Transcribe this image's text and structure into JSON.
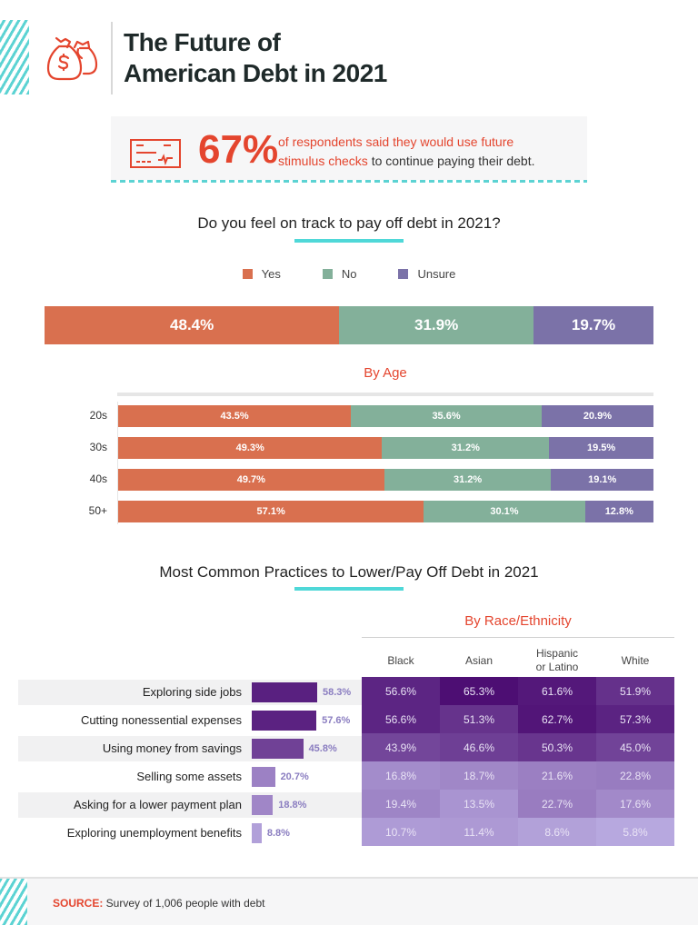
{
  "header": {
    "title_line1": "The Future of",
    "title_line2": "American Debt in 2021",
    "icon": "money-bags-icon"
  },
  "callout": {
    "icon": "check-icon",
    "percent": "67%",
    "text_highlight_line1": "of respondents said they would use future",
    "text_highlight_line2": "stimulus checks",
    "text_rest": " to continue paying their debt."
  },
  "colors": {
    "yes": "#d9704f",
    "no": "#83b09a",
    "unsure": "#7b72a8",
    "accent": "#e4452e",
    "teal": "#4fd8d8"
  },
  "chart_data": [
    {
      "type": "bar",
      "stacked": true,
      "orientation": "horizontal",
      "title": "Do you feel on track to pay off debt in 2021?",
      "legend": [
        "Yes",
        "No",
        "Unsure"
      ],
      "legend_position": "top-center",
      "categories": [
        "Overall"
      ],
      "series": [
        {
          "name": "Yes",
          "values": [
            48.4
          ],
          "labels": [
            "48.4%"
          ]
        },
        {
          "name": "No",
          "values": [
            31.9
          ],
          "labels": [
            "31.9%"
          ]
        },
        {
          "name": "Unsure",
          "values": [
            19.7
          ],
          "labels": [
            "19.7%"
          ]
        }
      ]
    },
    {
      "type": "bar",
      "stacked": true,
      "orientation": "horizontal",
      "title": "By Age",
      "categories": [
        "20s",
        "30s",
        "40s",
        "50+"
      ],
      "series": [
        {
          "name": "Yes",
          "values": [
            43.5,
            49.3,
            49.7,
            57.1
          ],
          "labels": [
            "43.5%",
            "49.3%",
            "49.7%",
            "57.1%"
          ]
        },
        {
          "name": "No",
          "values": [
            35.6,
            31.2,
            31.2,
            30.1
          ],
          "labels": [
            "35.6%",
            "31.2%",
            "31.2%",
            "30.1%"
          ]
        },
        {
          "name": "Unsure",
          "values": [
            20.9,
            19.5,
            19.1,
            12.8
          ],
          "labels": [
            "20.9%",
            "19.5%",
            "19.1%",
            "12.8%"
          ]
        }
      ]
    },
    {
      "type": "bar",
      "orientation": "horizontal",
      "title": "Most Common Practices to Lower/Pay Off Debt in 2021",
      "categories": [
        "Exploring side jobs",
        "Cutting nonessential expenses",
        "Using money from savings",
        "Selling some assets",
        "Asking for a lower payment plan",
        "Exploring unemployment benefits"
      ],
      "values": [
        58.3,
        57.6,
        45.8,
        20.7,
        18.8,
        8.8
      ],
      "labels": [
        "58.3%",
        "57.6%",
        "45.8%",
        "20.7%",
        "18.8%",
        "8.8%"
      ]
    },
    {
      "type": "heatmap",
      "title": "By Race/Ethnicity",
      "columns": [
        "Black",
        "Asian",
        "Hispanic or Latino",
        "White"
      ],
      "rows": [
        "Exploring side jobs",
        "Cutting nonessential expenses",
        "Using money from savings",
        "Selling some assets",
        "Asking for a lower payment plan",
        "Exploring unemployment benefits"
      ],
      "values": [
        [
          56.6,
          65.3,
          61.6,
          51.9
        ],
        [
          56.6,
          51.3,
          62.7,
          57.3
        ],
        [
          43.9,
          46.6,
          50.3,
          45.0
        ],
        [
          16.8,
          18.7,
          21.6,
          22.8
        ],
        [
          19.4,
          13.5,
          22.7,
          17.6
        ],
        [
          10.7,
          11.4,
          8.6,
          5.8
        ]
      ],
      "labels": [
        [
          "56.6%",
          "65.3%",
          "61.6%",
          "51.9%"
        ],
        [
          "56.6%",
          "51.3%",
          "62.7%",
          "57.3%"
        ],
        [
          "43.9%",
          "46.6%",
          "50.3%",
          "45.0%"
        ],
        [
          "16.8%",
          "18.7%",
          "21.6%",
          "22.8%"
        ],
        [
          "19.4%",
          "13.5%",
          "22.7%",
          "17.6%"
        ],
        [
          "10.7%",
          "11.4%",
          "8.6%",
          "5.8%"
        ]
      ]
    }
  ],
  "footer": {
    "source_label": "SOURCE:",
    "source_text": " Survey of 1,006 people with debt"
  }
}
